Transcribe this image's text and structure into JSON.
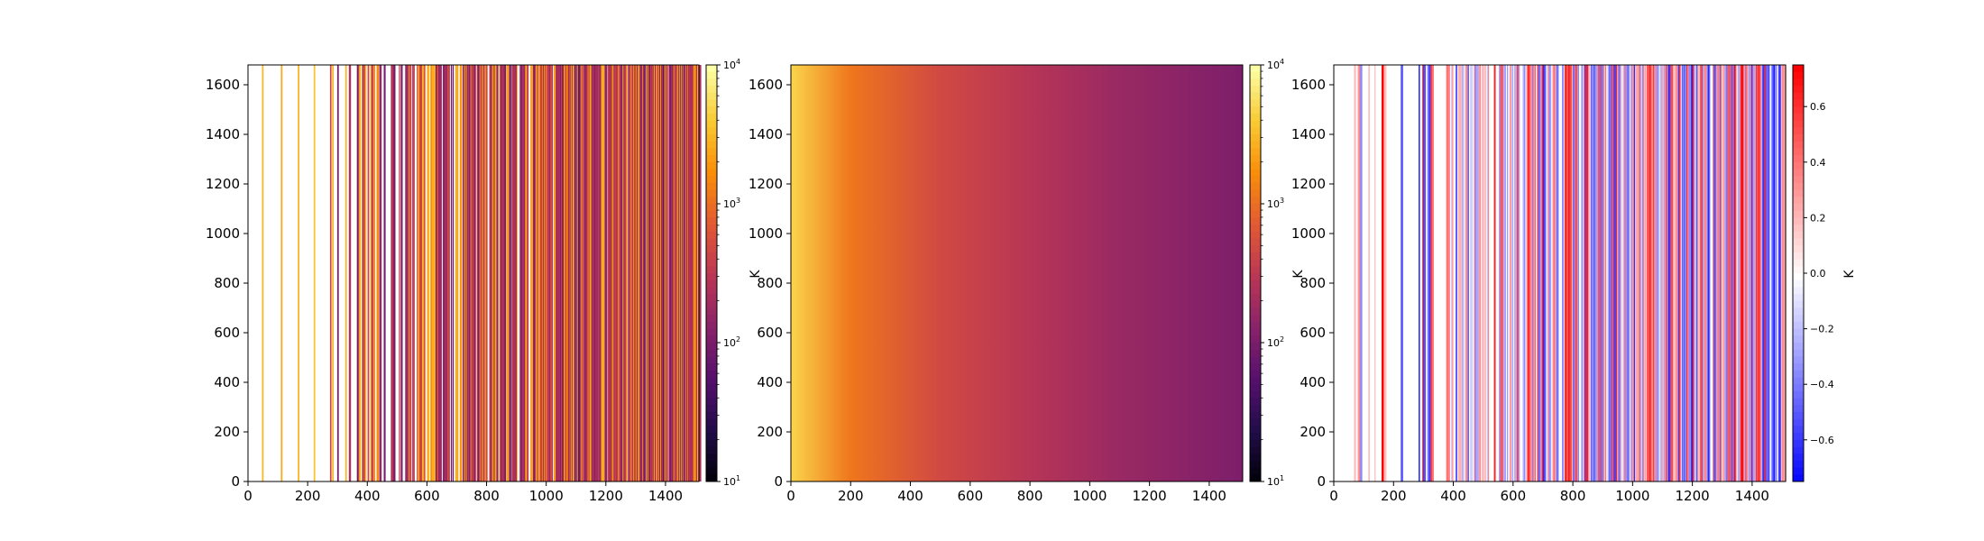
{
  "chart_data": [
    {
      "type": "heatmap",
      "panel": "left",
      "xlim": [
        0,
        1512
      ],
      "ylim": [
        0,
        1680
      ],
      "xticks": [
        0,
        200,
        400,
        600,
        800,
        1000,
        1200,
        1400
      ],
      "yticks": [
        0,
        200,
        400,
        600,
        800,
        1000,
        1200,
        1400,
        1600
      ],
      "colormap": "inferno",
      "colorbar": {
        "scale": "log",
        "range": [
          10,
          10000
        ],
        "ticks": [
          "10^1",
          "10^2",
          "10^3",
          "10^4"
        ],
        "label": ""
      },
      "description_values": "vertical streaks; bright orange sparse columns at low x, dense purple/orange columns at high x"
    },
    {
      "type": "heatmap",
      "panel": "middle",
      "xlim": [
        0,
        1512
      ],
      "ylim": [
        0,
        1680
      ],
      "xticks": [
        0,
        200,
        400,
        600,
        800,
        1000,
        1200,
        1400
      ],
      "yticks": [
        0,
        200,
        400,
        600,
        800,
        1000,
        1200,
        1400,
        1600
      ],
      "colormap": "inferno",
      "colorbar": {
        "scale": "log",
        "range": [
          10,
          10000
        ],
        "ticks": [
          "10^1",
          "10^2",
          "10^3",
          "10^4"
        ],
        "label": "K"
      },
      "gradient_values": [
        [
          0,
          5000
        ],
        [
          200,
          1200
        ],
        [
          500,
          500
        ],
        [
          800,
          300
        ],
        [
          1100,
          180
        ],
        [
          1512,
          110
        ]
      ]
    },
    {
      "type": "heatmap",
      "panel": "right",
      "xlim": [
        0,
        1512
      ],
      "ylim": [
        0,
        1680
      ],
      "xticks": [
        0,
        200,
        400,
        600,
        800,
        1000,
        1200,
        1400
      ],
      "yticks": [
        0,
        200,
        400,
        600,
        800,
        1000,
        1200,
        1400,
        1600
      ],
      "colormap": "bwr",
      "colorbar": {
        "scale": "linear",
        "range": [
          -0.75,
          0.75
        ],
        "ticks": [
          -0.6,
          -0.4,
          -0.2,
          0.0,
          0.2,
          0.4,
          0.6
        ],
        "label": "K"
      }
    }
  ],
  "labels": {
    "xticks": [
      "0",
      "200",
      "400",
      "600",
      "800",
      "1000",
      "1200",
      "1400"
    ],
    "yticks": [
      "0",
      "200",
      "400",
      "600",
      "800",
      "1000",
      "1200",
      "1400",
      "1600"
    ],
    "log_base": "10",
    "log_exps": [
      "1",
      "2",
      "3",
      "4"
    ],
    "cb3_ticks": [
      "−0.6",
      "−0.4",
      "−0.2",
      "0.0",
      "0.2",
      "0.4",
      "0.6"
    ],
    "cb_label_middle": "K",
    "cb_label_right": "K"
  },
  "colors": {
    "inferno": [
      "#000004",
      "#1f0c48",
      "#550f6d",
      "#88226a",
      "#ba3655",
      "#e35933",
      "#f98e09",
      "#f9cb35",
      "#fcffa4"
    ],
    "bwr": [
      "#0000ff",
      "#ffffff",
      "#ff0000"
    ]
  }
}
